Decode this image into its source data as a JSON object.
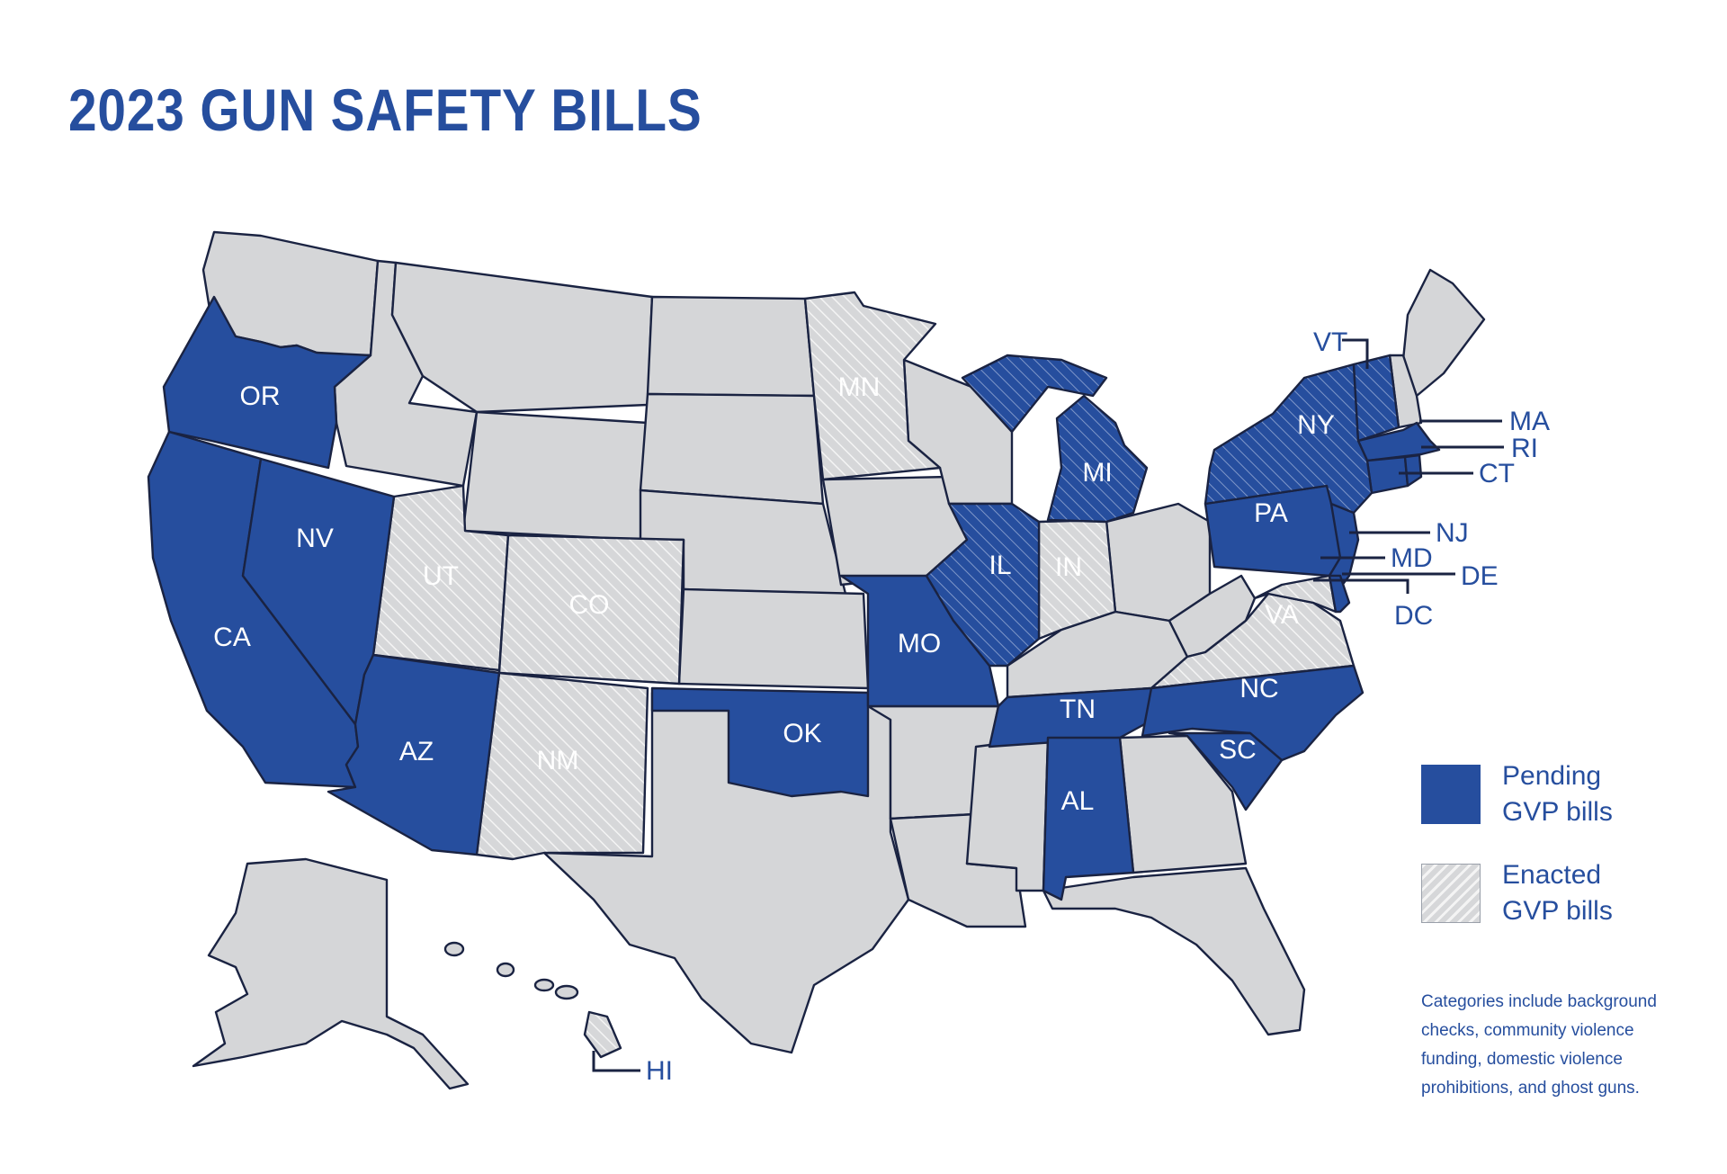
{
  "title": "2023 GUN SAFETY BILLS",
  "colors": {
    "pending": "#264e9e",
    "enacted_bg": "#d6d7d9",
    "enacted_hatch": "#f4f4f4",
    "none": "#d5d6d8",
    "border": "#1a2342"
  },
  "legend": {
    "pending": "Pending GVP bills",
    "enacted": "Enacted GVP bills"
  },
  "note": "Categories include background checks, community violence funding, domestic violence prohibitions, and ghost guns.",
  "states": {
    "OR": "Pending",
    "CA": "Pending",
    "NV": "Pending",
    "AZ": "Pending",
    "OK": "Pending",
    "MO": "Pending",
    "TN": "Pending",
    "AL": "Pending",
    "SC": "Pending",
    "NC": "Pending",
    "PA": "Pending",
    "NJ": "Pending",
    "DE": "Pending",
    "MA": "Pending",
    "RI": "Pending",
    "CT": "Pending",
    "NY": "Pending and Enacted",
    "VT": "Pending and Enacted",
    "MI": "Pending and Enacted",
    "IL": "Pending and Enacted",
    "UT": "Enacted",
    "CO": "Enacted",
    "NM": "Enacted",
    "MN": "Enacted",
    "IN": "Enacted",
    "VA": "Enacted",
    "MD": "Enacted",
    "HI": "Enacted",
    "DC": "Enacted"
  },
  "labels": {
    "OR": "OR",
    "CA": "CA",
    "NV": "NV",
    "AZ": "AZ",
    "UT": "UT",
    "CO": "CO",
    "NM": "NM",
    "OK": "OK",
    "MO": "MO",
    "MN": "MN",
    "IL": "IL",
    "IN": "IN",
    "MI": "MI",
    "TN": "TN",
    "AL": "AL",
    "SC": "SC",
    "NC": "NC",
    "VA": "VA",
    "PA": "PA",
    "NY": "NY",
    "VT": "VT",
    "MA": "MA",
    "RI": "RI",
    "CT": "CT",
    "NJ": "NJ",
    "MD": "MD",
    "DE": "DE",
    "DC": "DC",
    "HI": "HI"
  }
}
